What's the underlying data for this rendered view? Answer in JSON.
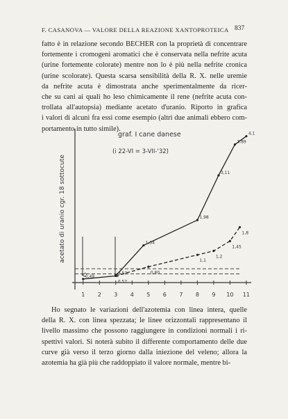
{
  "header": {
    "title": "F. CASANOVA — VALORE DELLA REAZIONE XANTOPROTEICA",
    "page": "837"
  },
  "paragraphs": [
    {
      "lines": [
        "fatto è in relazione secondo BECHER con la proprietà di concentrare",
        "fortemente i cromogeni aromatici che è conservata nella nefrite acuta",
        "(urine fortemente colorate) mentre non lo è più nella nefrite cronica",
        "(urine scolorate). Questa scarsa sensibilità della R. X. nelle uremie",
        "da nefrite acuta è dimostrata anche sperimentalmente da ricer-",
        "che su cani ai quali ho leso chimicamente il rene (nefrite acuta con-",
        "trollata all'autopsia) mediante acetato d'uranio. Riporto in grafica",
        "i valori di alcuni fra essi come esempio (altri due animali ebbero com-",
        "portamento in tutto simile)."
      ]
    },
    {
      "lines": [
        "Ho segnato le variazioni dell'azotemia con linea intera, quelle",
        "della R. X. con linea spezzata; le linee orizzontali rappresentano il",
        "livello massimo che possono raggiungere in condizioni normali i ri-",
        "spettivi valori. Si noterà subito il differente comportamento delle due",
        "curve già verso il terzo giorno dalla iniezione del veleno; allora la",
        "azotemia ha già più che raddoppiato il valore normale, mentre bi-"
      ]
    }
  ],
  "figure": {
    "type": "line",
    "title": "graf. I cane danese",
    "subtitle": "(i 22-VI = 3-VII-'32)",
    "y_label": "acetato di uranio cgr. 18 sottocute",
    "xlim": [
      0.5,
      11.3
    ],
    "ylim": [
      0.4,
      4.2
    ],
    "xticks": [
      1,
      2,
      3,
      4,
      5,
      6,
      7,
      8,
      9,
      10,
      11
    ],
    "reference_lines": [
      0.75,
      0.62
    ],
    "series": [
      {
        "name": "azotemia",
        "style": "solid",
        "x": [
          1,
          3,
          4.7,
          8,
          9.3,
          10.3,
          11
        ],
        "values": [
          0.49,
          0.57,
          1.34,
          1.98,
          3.11,
          3.89,
          4.1
        ],
        "value_labels": [
          "0,49",
          "0,57",
          "1,34",
          "1,98",
          "3,11",
          "3,89",
          "4,1"
        ]
      },
      {
        "name": "R. X.",
        "style": "dashed",
        "x": [
          3,
          5,
          8,
          9,
          10,
          10.6
        ],
        "values": [
          0.57,
          0.8,
          1.1,
          1.2,
          1.45,
          1.8
        ],
        "value_labels": [
          "0,57",
          "0,80",
          "1,1",
          "1,2",
          "1,45",
          "1,8"
        ]
      }
    ]
  }
}
